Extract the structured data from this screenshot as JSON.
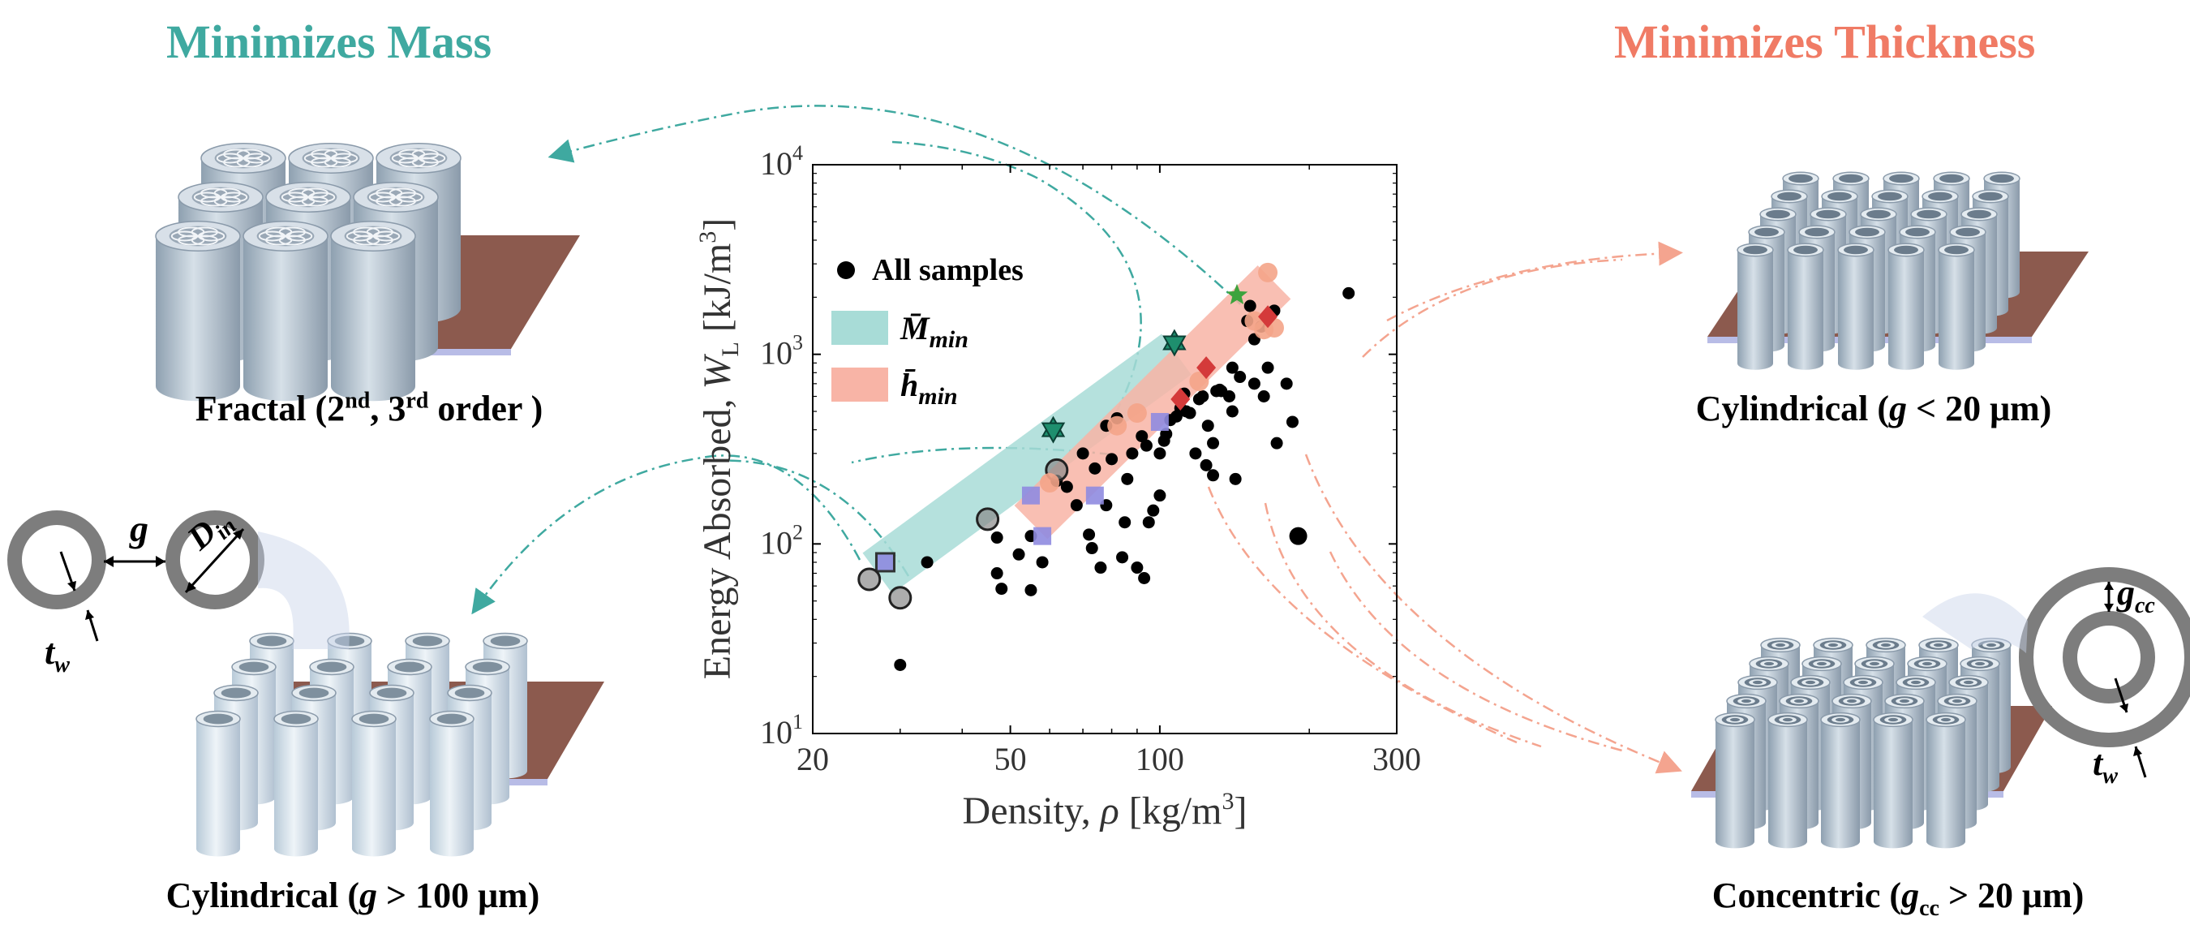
{
  "headings": {
    "left": "Minimizes Mass",
    "right": "Minimizes Thickness",
    "left_color": "#3fa9a0",
    "right_color": "#f07b65"
  },
  "captions": {
    "fractal": {
      "pre": "Fractal (2",
      "sup1": "nd",
      "mid": ", 3",
      "sup2": "rd",
      "post": " order )"
    },
    "cyl_small": {
      "pre": "Cylindrical (",
      "var": "g",
      "post": " < 20 μm)"
    },
    "cyl_large": {
      "pre": "Cylindrical (",
      "var": "g",
      "post": " > 100 μm)"
    },
    "concentric": {
      "pre": "Concentric (",
      "var": "g",
      "sub": "cc",
      "post": " > 20 μm)"
    }
  },
  "schematics": {
    "gap": "g",
    "diameter": "D",
    "diameter_sub": "in",
    "wall": "t",
    "wall_sub": "w",
    "gap_cc": "g",
    "gap_cc_sub": "cc"
  },
  "colors": {
    "teal_band": "#a8dcd7",
    "salmon_band": "#f8b4a6",
    "teal_arrow": "#3fa9a0",
    "salmon_arrow": "#f4a48f",
    "tube": "#b8c6d2",
    "base": "#8c5a4e",
    "base_edge": "#b8bce6"
  },
  "chart_data": {
    "type": "scatter",
    "xscale": "log",
    "yscale": "log",
    "xlim": [
      20,
      300
    ],
    "ylim": [
      10,
      10000
    ],
    "xticks": [
      "20",
      "50",
      "100",
      "300"
    ],
    "xtick_values": [
      20,
      50,
      100,
      300
    ],
    "yticks": [
      {
        "base": "10",
        "exp": "1",
        "value": 10
      },
      {
        "base": "10",
        "exp": "2",
        "value": 100
      },
      {
        "base": "10",
        "exp": "3",
        "value": 1000
      },
      {
        "base": "10",
        "exp": "4",
        "value": 10000
      }
    ],
    "xlabel": {
      "text": "Density, ",
      "sym": "ρ",
      "unit": " [kg/m",
      "unit_exp": "3",
      "close": "]"
    },
    "ylabel": {
      "text": "Energy Absorbed, ",
      "sym": "W",
      "sym_sub": "L",
      "unit": " [kJ/m",
      "unit_exp": "3",
      "close": "]"
    },
    "legend": {
      "position": "upper-left",
      "all": "All samples",
      "mmin": "M̄",
      "mmin_sub": "min",
      "hmin": "h̄",
      "hmin_sub": "min"
    },
    "bands": {
      "mass": [
        [
          27,
          70
        ],
        [
          108,
          1000
        ]
      ],
      "thickness": [
        [
          55,
          130
        ],
        [
          170,
          2400
        ]
      ]
    },
    "series": [
      {
        "name": "All samples",
        "marker": "circle",
        "color": "#000000",
        "points": [
          [
            30,
            23
          ],
          [
            34,
            80
          ],
          [
            47,
            108
          ],
          [
            47,
            70
          ],
          [
            48,
            58
          ],
          [
            52,
            88
          ],
          [
            55,
            57
          ],
          [
            55,
            110
          ],
          [
            58,
            80
          ],
          [
            62,
            215
          ],
          [
            65,
            200
          ],
          [
            68,
            160
          ],
          [
            70,
            300
          ],
          [
            72,
            112
          ],
          [
            73,
            95
          ],
          [
            74,
            250
          ],
          [
            76,
            75
          ],
          [
            78,
            160
          ],
          [
            78,
            420
          ],
          [
            80,
            280
          ],
          [
            82,
            460
          ],
          [
            84,
            85
          ],
          [
            85,
            130
          ],
          [
            86,
            220
          ],
          [
            88,
            300
          ],
          [
            90,
            75
          ],
          [
            92,
            370
          ],
          [
            93,
            66
          ],
          [
            94,
            330
          ],
          [
            95,
            130
          ],
          [
            97,
            150
          ],
          [
            100,
            180
          ],
          [
            100,
            300
          ],
          [
            102,
            350
          ],
          [
            103,
            380
          ],
          [
            105,
            450
          ],
          [
            108,
            470
          ],
          [
            110,
            520
          ],
          [
            112,
            620
          ],
          [
            113,
            500
          ],
          [
            115,
            490
          ],
          [
            118,
            300
          ],
          [
            120,
            580
          ],
          [
            122,
            600
          ],
          [
            124,
            260
          ],
          [
            125,
            420
          ],
          [
            128,
            340
          ],
          [
            128,
            230
          ],
          [
            130,
            640
          ],
          [
            132,
            650
          ],
          [
            133,
            640
          ],
          [
            138,
            600
          ],
          [
            140,
            850
          ],
          [
            140,
            500
          ],
          [
            142,
            220
          ],
          [
            145,
            760
          ],
          [
            150,
            1500
          ],
          [
            152,
            1800
          ],
          [
            155,
            1200
          ],
          [
            155,
            700
          ],
          [
            160,
            1400
          ],
          [
            162,
            600
          ],
          [
            165,
            850
          ],
          [
            170,
            1700
          ],
          [
            172,
            340
          ],
          [
            180,
            700
          ],
          [
            185,
            440
          ],
          [
            240,
            2100
          ]
        ]
      },
      {
        "name": "Fractal",
        "marker": "circle-outline",
        "color": "#8a8a8a",
        "points": [
          [
            26,
            65
          ],
          [
            30,
            52
          ],
          [
            45,
            135
          ],
          [
            62,
            245
          ]
        ]
      },
      {
        "name": "Cylindrical small gap",
        "marker": "circle-orange",
        "color": "#f4a488",
        "points": [
          [
            60,
            210
          ],
          [
            82,
            420
          ],
          [
            90,
            490
          ],
          [
            120,
            720
          ],
          [
            155,
            1500
          ],
          [
            170,
            1380
          ],
          [
            162,
            1350
          ],
          [
            165,
            2700
          ]
        ]
      },
      {
        "name": "Large circle",
        "marker": "circle-big",
        "color": "#000000",
        "points": [
          [
            190,
            110
          ]
        ]
      },
      {
        "name": "Square",
        "marker": "square",
        "color": "#8f8be0",
        "points": [
          [
            28,
            80
          ],
          [
            55,
            180
          ],
          [
            58,
            110
          ],
          [
            74,
            180
          ],
          [
            100,
            440
          ]
        ]
      },
      {
        "name": "Diamond",
        "marker": "diamond",
        "color": "#d43a3a",
        "points": [
          [
            110,
            580
          ],
          [
            124,
            850
          ],
          [
            165,
            1580
          ]
        ]
      },
      {
        "name": "Hexagram",
        "marker": "hexagram",
        "color": "#1e8f6e",
        "points": [
          [
            61,
            400
          ],
          [
            107,
            1150
          ]
        ]
      },
      {
        "name": "Star",
        "marker": "star",
        "color": "#3da33d",
        "points": [
          [
            143,
            2050
          ]
        ]
      }
    ]
  }
}
